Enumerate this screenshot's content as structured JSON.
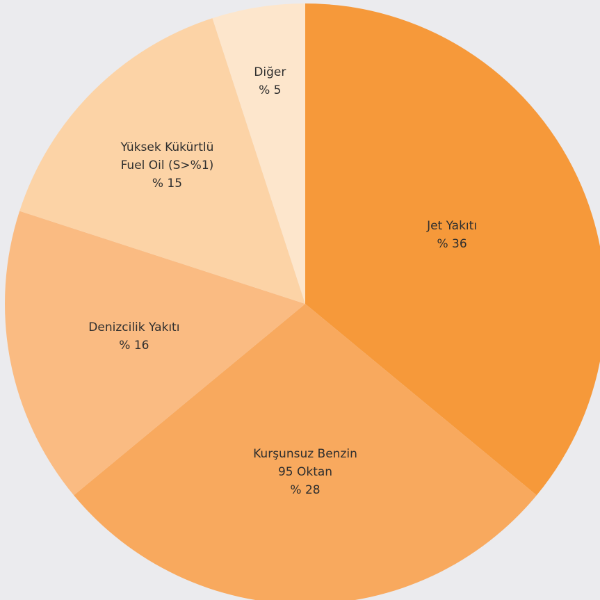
{
  "chart_data": {
    "type": "pie",
    "categories": [
      "Jet Yakıtı",
      "Kurşunsuz Benzin\n95 Oktan",
      "Denizcilik Yakıtı",
      "Yüksek Kükürtlü\nFuel Oil (S>%1)",
      "Diğer"
    ],
    "values": [
      36,
      28,
      16,
      15,
      5
    ],
    "value_labels": [
      "% 36",
      "% 28",
      "% 16",
      "% 15",
      "% 5"
    ],
    "colors": [
      "#f6993a",
      "#f8a95e",
      "#fabb82",
      "#fcd3a6",
      "#fde6cc"
    ]
  }
}
